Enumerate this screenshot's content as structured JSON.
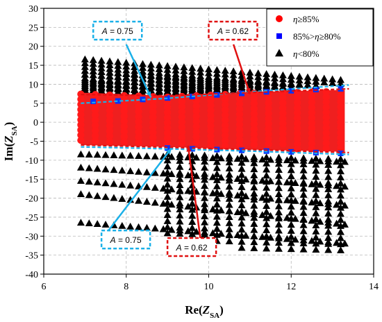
{
  "chart_data": {
    "type": "scatter",
    "title": "",
    "xlabel": {
      "prefix": "Re(",
      "var": "Z",
      "sub": "SA",
      "suffix": ")"
    },
    "ylabel": {
      "prefix": "Im(",
      "var": "Z",
      "sub": "SA",
      "suffix": ")"
    },
    "xlim": [
      6,
      14
    ],
    "ylim": [
      -40,
      30
    ],
    "xticks": [
      "6",
      "8",
      "10",
      "12",
      "14"
    ],
    "yticks": [
      "30",
      "25",
      "20",
      "15",
      "10",
      "5",
      "0",
      "-5",
      "-10",
      "-15",
      "-20",
      "-25",
      "-30",
      "-35",
      "-40"
    ],
    "grid": true,
    "legend_position": "top-right",
    "series": [
      {
        "name": "η≥85%",
        "label_parts": [
          "η",
          "≥85%"
        ],
        "marker": "circle",
        "color": "#ff0000",
        "region": {
          "x_range": [
            6.9,
            13.3
          ],
          "upper_boundary": [
            [
              6.9,
              7.8
            ],
            [
              9.0,
              7.0
            ],
            [
              11.0,
              8.0
            ],
            [
              13.3,
              8.5
            ]
          ],
          "lower_boundary": [
            [
              6.9,
              -6.0
            ],
            [
              9.0,
              -6.5
            ],
            [
              11.0,
              -7.2
            ],
            [
              13.3,
              -7.8
            ]
          ]
        }
      },
      {
        "name": "85%>η≥80%",
        "label_parts": [
          "85%>",
          "η",
          "≥80%"
        ],
        "marker": "square",
        "color": "#0000ff",
        "upper_points": [
          [
            7.2,
            5.5
          ],
          [
            7.8,
            5.6
          ],
          [
            8.4,
            6.0
          ],
          [
            9.0,
            6.4
          ],
          [
            9.6,
            6.8
          ],
          [
            10.2,
            7.2
          ],
          [
            10.8,
            7.6
          ],
          [
            11.4,
            8.0
          ],
          [
            12.0,
            8.3
          ],
          [
            12.6,
            8.6
          ],
          [
            13.2,
            8.8
          ]
        ],
        "lower_points": [
          [
            9.0,
            -6.8
          ],
          [
            9.6,
            -7.0
          ],
          [
            10.2,
            -7.2
          ],
          [
            10.8,
            -7.4
          ],
          [
            11.4,
            -7.6
          ],
          [
            12.0,
            -7.8
          ],
          [
            12.6,
            -8.0
          ],
          [
            13.2,
            -8.2
          ]
        ]
      },
      {
        "name": "η<80%",
        "label_parts": [
          "η",
          "<80%"
        ],
        "marker": "triangle",
        "color": "#000000",
        "upper_bands": [
          [
            7.0,
            16.5,
            13.3,
            11.0
          ],
          [
            7.0,
            13.5,
            13.3,
            9.0
          ],
          [
            7.0,
            11.0,
            13.3,
            8.0
          ]
        ],
        "lower_rows": [
          [
            6.9,
            -8.5,
            13.3,
            -10.5
          ],
          [
            6.9,
            -12.0,
            13.3,
            -17.0
          ],
          [
            6.9,
            -15.5,
            13.3,
            -22.0
          ],
          [
            6.9,
            -19.0,
            13.3,
            -27.0
          ],
          [
            6.9,
            -26.5,
            13.3,
            -32.0
          ]
        ],
        "lower_tail_bottom": [
          [
            9.0,
            -30.0
          ],
          [
            10.5,
            -33.0
          ],
          [
            12.0,
            -34.0
          ],
          [
            13.3,
            -34.5
          ]
        ]
      }
    ],
    "boundaries": [
      {
        "name": "A = 0.75",
        "color": "#1ab0e8",
        "upper": [
          [
            6.9,
            5.0
          ],
          [
            9.0,
            6.3
          ],
          [
            11.0,
            8.0
          ],
          [
            13.4,
            9.8
          ]
        ],
        "lower": [
          [
            6.9,
            -6.5
          ],
          [
            9.0,
            -7.0
          ],
          [
            11.0,
            -7.6
          ],
          [
            13.4,
            -8.5
          ]
        ]
      },
      {
        "name": "A = 0.62",
        "color": "#e01010",
        "upper": [
          [
            6.9,
            7.3
          ],
          [
            9.0,
            7.0
          ],
          [
            11.0,
            7.8
          ],
          [
            13.4,
            8.8
          ]
        ],
        "lower": [
          [
            6.9,
            -6.0
          ],
          [
            9.0,
            -6.6
          ],
          [
            11.0,
            -7.2
          ],
          [
            13.4,
            -8.0
          ]
        ]
      }
    ],
    "annotations": [
      {
        "text_parts": [
          "A",
          " = 0.75"
        ],
        "color": "#1ab0e8",
        "box_tl": [
          7.2,
          26.5
        ],
        "arrow_from": [
          8.0,
          20.5
        ],
        "arrow_to": [
          8.6,
          6.5
        ]
      },
      {
        "text_parts": [
          "A",
          " = 0.62"
        ],
        "color": "#e01010",
        "box_tl": [
          10.0,
          26.5
        ],
        "arrow_from": [
          10.6,
          20.5
        ],
        "arrow_to": [
          11.0,
          7.4
        ]
      },
      {
        "text_parts": [
          "A",
          " = 0.75"
        ],
        "color": "#1ab0e8",
        "box_tl": [
          7.4,
          -28.5
        ],
        "arrow_from": [
          7.5,
          -29.5
        ],
        "arrow_to": [
          9.1,
          -6.8
        ]
      },
      {
        "text_parts": [
          "A",
          " = 0.62"
        ],
        "color": "#e01010",
        "box_tl": [
          9.0,
          -30.5
        ],
        "arrow_from": [
          9.8,
          -30.8
        ],
        "arrow_to": [
          9.5,
          -6.2
        ]
      }
    ]
  }
}
